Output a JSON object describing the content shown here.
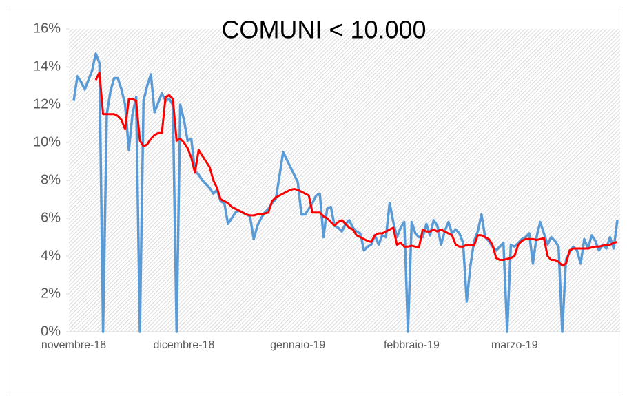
{
  "chart_data": {
    "type": "line",
    "title": "COMUNI < 10.000",
    "categories": [
      "novembre-18",
      null,
      null,
      null,
      null,
      null,
      null,
      null,
      null,
      null,
      null,
      null,
      null,
      null,
      null,
      null,
      null,
      null,
      null,
      null,
      null,
      null,
      null,
      null,
      null,
      null,
      null,
      null,
      null,
      null,
      "dicembre-18",
      null,
      null,
      null,
      null,
      null,
      null,
      null,
      null,
      null,
      null,
      null,
      null,
      null,
      null,
      null,
      null,
      null,
      null,
      null,
      null,
      null,
      null,
      null,
      null,
      null,
      null,
      null,
      null,
      null,
      null,
      "gennaio-19",
      null,
      null,
      null,
      null,
      null,
      null,
      null,
      null,
      null,
      null,
      null,
      null,
      null,
      null,
      null,
      null,
      null,
      null,
      null,
      null,
      null,
      null,
      null,
      null,
      null,
      null,
      null,
      null,
      null,
      null,
      "febbraio-19",
      null,
      null,
      null,
      null,
      null,
      null,
      null,
      null,
      null,
      null,
      null,
      null,
      null,
      null,
      null,
      null,
      null,
      null,
      null,
      null,
      null,
      null,
      null,
      null,
      null,
      null,
      null,
      "marzo-19",
      null,
      null,
      null,
      null,
      null,
      null,
      null,
      null,
      null,
      null,
      null,
      null,
      null,
      null,
      null,
      null,
      null,
      null,
      null,
      null,
      null,
      null,
      null,
      null,
      null,
      null,
      null,
      null
    ],
    "series": [
      {
        "color": "#5b9bd5",
        "values": [
          12.2,
          13.5,
          13.2,
          12.8,
          13.3,
          13.8,
          14.7,
          14.2,
          0,
          11.5,
          12.7,
          13.4,
          13.4,
          12.8,
          12.0,
          9.6,
          11.5,
          12.4,
          0,
          12.2,
          13.0,
          13.6,
          11.6,
          12.1,
          12.6,
          12.2,
          12.3,
          12.0,
          0,
          12.0,
          11.2,
          10.1,
          10.2,
          8.5,
          8.3,
          8.0,
          7.8,
          7.6,
          7.3,
          7.5,
          6.9,
          6.8,
          5.7,
          6.0,
          6.3,
          6.4,
          6.3,
          6.2,
          6.1,
          4.9,
          5.6,
          6.0,
          6.3,
          6.5,
          6.8,
          7.0,
          8.2,
          9.5,
          9.1,
          8.7,
          8.3,
          7.9,
          6.2,
          6.2,
          6.5,
          6.8,
          7.2,
          7.3,
          5.0,
          6.5,
          6.6,
          5.6,
          5.5,
          5.3,
          5.7,
          5.9,
          5.5,
          5.3,
          5.2,
          4.3,
          4.5,
          4.6,
          5.1,
          4.6,
          5.1,
          5.0,
          6.8,
          5.8,
          5.0,
          5.5,
          5.8,
          0,
          5.8,
          5.2,
          5.0,
          5.0,
          5.7,
          5.1,
          5.9,
          5.6,
          4.6,
          5.3,
          5.8,
          5.2,
          5.4,
          5.2,
          4.7,
          1.6,
          3.5,
          4.8,
          5.3,
          6.2,
          5.0,
          4.8,
          4.5,
          4.3,
          4.5,
          4.7,
          0,
          4.6,
          4.5,
          4.7,
          4.9,
          5.0,
          5.2,
          3.6,
          5.0,
          5.8,
          5.2,
          4.6,
          5.0,
          4.8,
          4.5,
          0,
          3.8,
          4.2,
          4.5,
          4.3,
          3.6,
          4.9,
          4.4,
          5.1,
          4.8,
          4.3,
          4.6,
          4.4,
          5.0,
          4.4,
          5.9
        ]
      },
      {
        "color": "#ff0000",
        "values": [
          null,
          null,
          null,
          null,
          null,
          null,
          13.3,
          13.7,
          11.5,
          11.5,
          11.5,
          11.5,
          11.4,
          11.2,
          10.7,
          12.3,
          12.3,
          12.2,
          10.1,
          9.8,
          9.9,
          10.2,
          10.4,
          10.5,
          10.5,
          12.4,
          12.5,
          12.3,
          10.1,
          10.2,
          10.0,
          9.7,
          9.2,
          8.4,
          9.6,
          9.3,
          9.0,
          8.7,
          8.0,
          7.6,
          7.0,
          6.9,
          6.8,
          6.6,
          6.5,
          6.4,
          6.3,
          6.2,
          6.15,
          6.15,
          6.2,
          6.2,
          6.25,
          6.3,
          6.9,
          7.1,
          7.2,
          7.3,
          7.4,
          7.5,
          7.55,
          7.5,
          7.4,
          7.3,
          7.2,
          6.3,
          6.3,
          6.3,
          6.1,
          6.0,
          5.8,
          5.6,
          5.8,
          5.9,
          5.7,
          5.5,
          5.4,
          5.1,
          5.0,
          4.9,
          4.8,
          4.75,
          5.1,
          5.2,
          5.2,
          5.3,
          5.4,
          5.5,
          4.6,
          4.7,
          4.5,
          4.5,
          4.55,
          4.5,
          4.45,
          5.4,
          5.3,
          5.3,
          5.4,
          5.3,
          5.4,
          5.3,
          5.2,
          5.1,
          4.6,
          4.5,
          4.5,
          4.6,
          4.6,
          4.55,
          5.1,
          5.1,
          5.0,
          4.9,
          4.6,
          3.9,
          3.8,
          3.8,
          3.85,
          3.9,
          4.0,
          4.6,
          4.8,
          4.9,
          4.9,
          4.9,
          4.85,
          4.9,
          4.95,
          4.0,
          3.8,
          3.8,
          3.7,
          3.5,
          3.6,
          4.3,
          4.4,
          4.4,
          4.4,
          4.4,
          4.4,
          4.45,
          4.5,
          4.5,
          4.55,
          4.6,
          4.6,
          4.7,
          4.75
        ]
      }
    ],
    "ylim": [
      0,
      16
    ],
    "yticks": [
      {
        "value": 0,
        "label": "0%"
      },
      {
        "value": 2,
        "label": "2%"
      },
      {
        "value": 4,
        "label": "4%"
      },
      {
        "value": 6,
        "label": "6%"
      },
      {
        "value": 8,
        "label": "8%"
      },
      {
        "value": 10,
        "label": "10%"
      },
      {
        "value": 12,
        "label": "12%"
      },
      {
        "value": 14,
        "label": "14%"
      },
      {
        "value": 16,
        "label": "16%"
      }
    ]
  }
}
